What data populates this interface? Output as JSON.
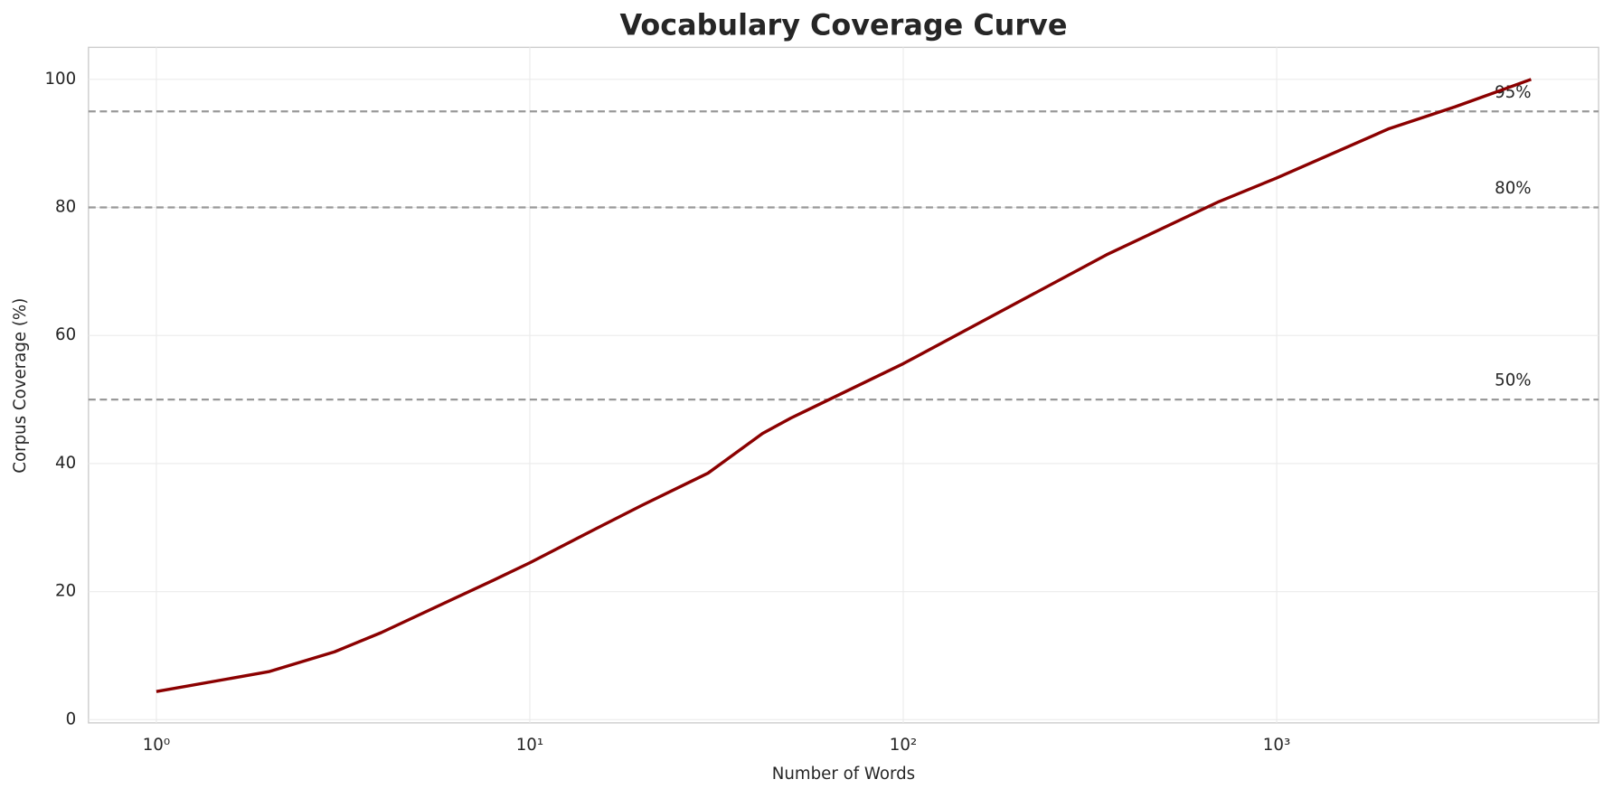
{
  "chart_data": {
    "type": "line",
    "title": "Vocabulary Coverage Curve",
    "x_label": "Number of Words",
    "y_label": "Corpus Coverage (%)",
    "x": [
      1,
      2,
      3,
      4,
      8,
      10,
      15,
      20,
      30,
      42,
      50,
      100,
      200,
      350,
      700,
      1000,
      2000,
      3000,
      4800
    ],
    "values": [
      4.4,
      7.5,
      10.6,
      13.6,
      21.8,
      24.5,
      29.8,
      33.5,
      38.5,
      44.7,
      47.1,
      55.6,
      65,
      72.6,
      80.9,
      84.6,
      92.3,
      95.7,
      100
    ],
    "color": "#8b0000",
    "x_scale": "log",
    "xlim": [
      0.658,
      7278
    ],
    "xticks": [
      {
        "value": 1,
        "label": "10⁰"
      },
      {
        "value": 10,
        "label": "10¹"
      },
      {
        "value": 100,
        "label": "10²"
      },
      {
        "value": 1000,
        "label": "10³"
      }
    ],
    "ylim": [
      -0.5,
      105
    ],
    "yticks": [
      0,
      20,
      40,
      60,
      80,
      100
    ],
    "grid": true,
    "hlines": [
      {
        "value": 50,
        "label": "50%"
      },
      {
        "value": 80,
        "label": "80%"
      },
      {
        "value": 95,
        "label": "95%"
      }
    ],
    "hline_color": "#999999"
  }
}
